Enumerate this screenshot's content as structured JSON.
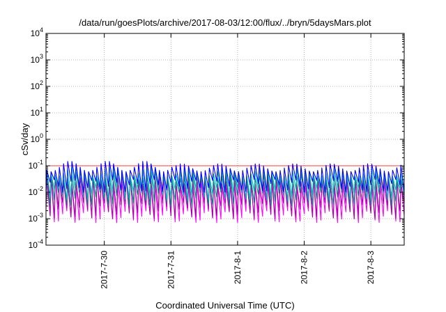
{
  "chart_data": {
    "type": "line",
    "title": "/data/run/goesPlots/archive/2017-08-03/12:00/flux/../bryn/5daysMars.plot",
    "xlabel": "Coordinated Universal Time (UTC)",
    "ylabel": "cSv/day",
    "y_scale": "log",
    "ylim": [
      0.0001,
      10000
    ],
    "y_ticks": [
      {
        "base": "10",
        "exp": "4"
      },
      {
        "base": "10",
        "exp": "3"
      },
      {
        "base": "10",
        "exp": "2"
      },
      {
        "base": "10",
        "exp": "1"
      },
      {
        "base": "10",
        "exp": "0"
      },
      {
        "base": "10",
        "exp": "-1"
      },
      {
        "base": "10",
        "exp": "-2"
      },
      {
        "base": "10",
        "exp": "-3"
      },
      {
        "base": "10",
        "exp": "-4"
      }
    ],
    "x_start": "2017-07-29T03:00",
    "x_end": "2017-08-03T12:00",
    "x_ticks": [
      "2017-7-30",
      "2017-7-31",
      "2017-8-1",
      "2017-8-2",
      "2017-8-3"
    ],
    "grid": true,
    "legend": "none",
    "reference_line": {
      "y": 0.1,
      "color": "#ff0000"
    },
    "series": [
      {
        "color": "#0000ff",
        "peak_range": [
          0.06,
          0.15
        ],
        "trough_range": [
          0.01,
          0.03
        ]
      },
      {
        "color": "#00bbbb",
        "peak_range": [
          0.04,
          0.1
        ],
        "trough_range": [
          0.005,
          0.015
        ]
      },
      {
        "color": "#008888",
        "peak_range": [
          0.03,
          0.07
        ],
        "trough_range": [
          0.003,
          0.01
        ]
      },
      {
        "color": "#aa00aa",
        "peak_range": [
          0.02,
          0.05
        ],
        "trough_range": [
          0.001,
          0.004
        ]
      },
      {
        "color": "#ff00ff",
        "peak_range": [
          0.015,
          0.04
        ],
        "trough_range": [
          0.0007,
          0.002
        ]
      }
    ]
  }
}
